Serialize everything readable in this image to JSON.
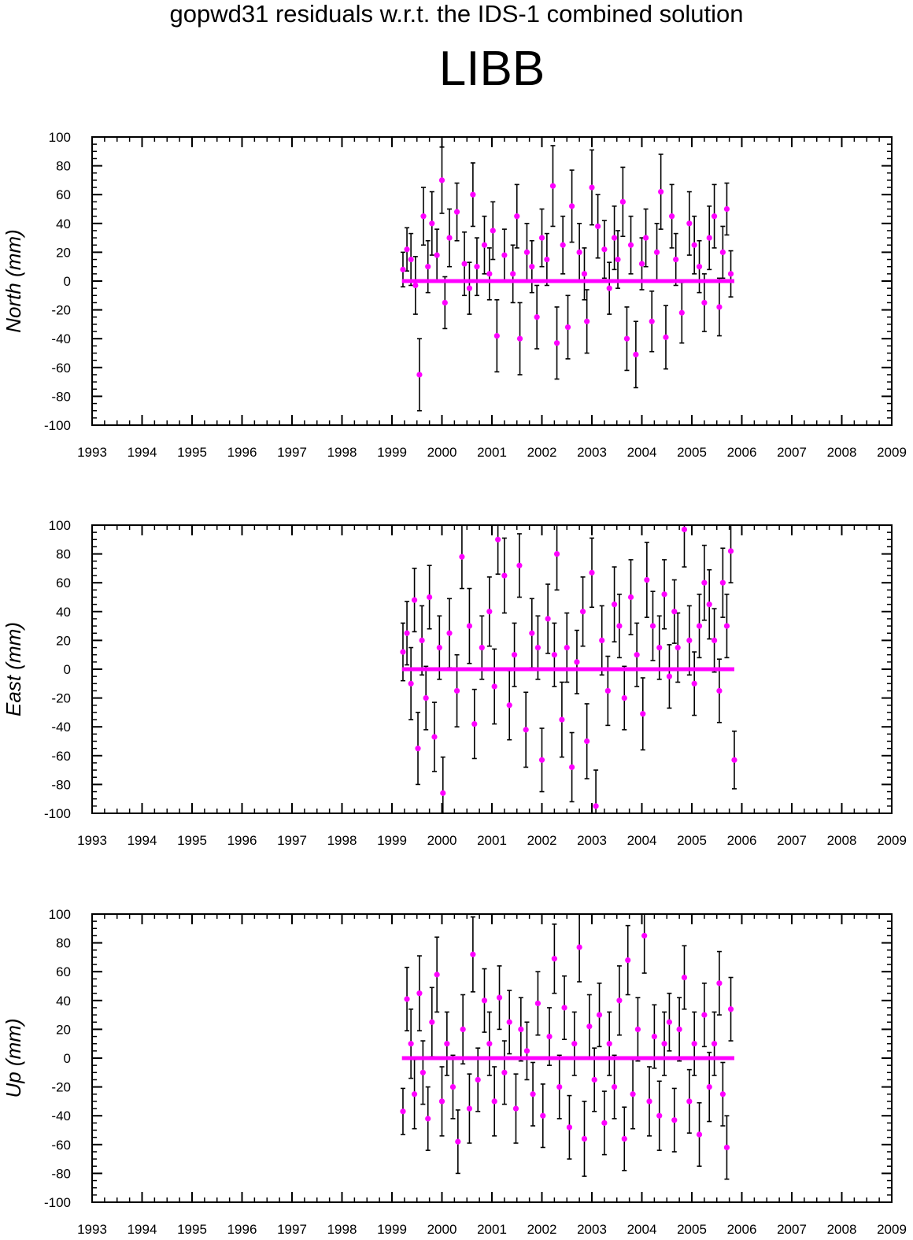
{
  "header": {
    "title": "gopwd31 residuals w.r.t. the IDS-1 combined solution",
    "station": "LIBB"
  },
  "colors": {
    "point": "#ff00ff",
    "error_bar": "#000000",
    "axes": "#000000"
  },
  "chart_data": [
    {
      "type": "scatter",
      "component": "North",
      "ylabel": "North (mm)",
      "xlim": [
        1993,
        2009
      ],
      "ylim": [
        -100,
        100
      ],
      "x_ticks": [
        "1993",
        "1994",
        "1995",
        "1996",
        "1997",
        "1998",
        "1999",
        "2000",
        "2001",
        "2002",
        "2003",
        "2004",
        "2005",
        "2006",
        "2007",
        "2008",
        "2009"
      ],
      "y_ticks": [
        "100",
        "80",
        "60",
        "40",
        "20",
        "0",
        "-20",
        "-40",
        "-60",
        "-80",
        "-100"
      ],
      "zero_line": {
        "x_start": 1999.2,
        "x_end": 2005.85,
        "y": 0
      },
      "series": [
        {
          "x": [
            1999.22,
            1999.3,
            1999.38,
            1999.47,
            1999.55,
            1999.63,
            1999.72,
            1999.8,
            1999.9,
            2000.0,
            2000.06,
            2000.15,
            2000.3,
            2000.45,
            2000.55,
            2000.62,
            2000.7,
            2000.85,
            2000.95,
            2001.02,
            2001.1,
            2001.25,
            2001.42,
            2001.5,
            2001.56,
            2001.7,
            2001.8,
            2001.9,
            2002.0,
            2002.1,
            2002.22,
            2002.3,
            2002.42,
            2002.52,
            2002.6,
            2002.75,
            2002.85,
            2002.9,
            2003.0,
            2003.12,
            2003.25,
            2003.35,
            2003.45,
            2003.52,
            2003.62,
            2003.7,
            2003.78,
            2003.88,
            2004.0,
            2004.08,
            2004.2,
            2004.3,
            2004.38,
            2004.48,
            2004.6,
            2004.68,
            2004.8,
            2004.95,
            2005.05,
            2005.15,
            2005.25,
            2005.35,
            2005.45,
            2005.55,
            2005.62,
            2005.7,
            2005.78
          ],
          "y": [
            8,
            22,
            15,
            -3,
            -65,
            45,
            10,
            40,
            18,
            70,
            -15,
            30,
            48,
            12,
            -5,
            60,
            10,
            25,
            5,
            35,
            -38,
            18,
            5,
            45,
            -40,
            20,
            10,
            -25,
            30,
            15,
            66,
            -43,
            25,
            -32,
            52,
            20,
            5,
            -28,
            65,
            38,
            22,
            -5,
            30,
            15,
            55,
            -40,
            25,
            -51,
            12,
            30,
            -28,
            20,
            62,
            -39,
            45,
            15,
            -22,
            40,
            25,
            10,
            -15,
            30,
            45,
            -18,
            20,
            50,
            5
          ],
          "err": [
            12,
            15,
            18,
            20,
            25,
            20,
            18,
            22,
            18,
            23,
            18,
            20,
            20,
            22,
            18,
            22,
            20,
            20,
            18,
            20,
            25,
            18,
            20,
            22,
            25,
            20,
            18,
            22,
            20,
            18,
            28,
            25,
            20,
            22,
            25,
            20,
            18,
            22,
            26,
            22,
            20,
            18,
            22,
            20,
            24,
            22,
            20,
            23,
            18,
            20,
            21,
            20,
            26,
            22,
            22,
            18,
            21,
            22,
            20,
            18,
            20,
            22,
            22,
            20,
            18,
            18,
            16
          ]
        }
      ]
    },
    {
      "type": "scatter",
      "component": "East",
      "ylabel": "East (mm)",
      "xlim": [
        1993,
        2009
      ],
      "ylim": [
        -100,
        100
      ],
      "x_ticks": [
        "1993",
        "1994",
        "1995",
        "1996",
        "1997",
        "1998",
        "1999",
        "2000",
        "2001",
        "2002",
        "2003",
        "2004",
        "2005",
        "2006",
        "2007",
        "2008",
        "2009"
      ],
      "y_ticks": [
        "100",
        "80",
        "60",
        "40",
        "20",
        "0",
        "-20",
        "-40",
        "-60",
        "-80",
        "-100"
      ],
      "zero_line": {
        "x_start": 1999.2,
        "x_end": 2005.85,
        "y": 0
      },
      "series": [
        {
          "x": [
            1999.22,
            1999.3,
            1999.38,
            1999.45,
            1999.52,
            1999.6,
            1999.68,
            1999.75,
            1999.85,
            1999.95,
            2000.02,
            2000.15,
            2000.3,
            2000.4,
            2000.55,
            2000.65,
            2000.8,
            2000.95,
            2001.05,
            2001.12,
            2001.25,
            2001.35,
            2001.45,
            2001.55,
            2001.68,
            2001.8,
            2001.92,
            2002.0,
            2002.12,
            2002.25,
            2002.3,
            2002.4,
            2002.5,
            2002.6,
            2002.7,
            2002.82,
            2002.9,
            2003.0,
            2003.08,
            2003.2,
            2003.32,
            2003.45,
            2003.55,
            2003.65,
            2003.78,
            2003.9,
            2004.02,
            2004.1,
            2004.22,
            2004.35,
            2004.45,
            2004.55,
            2004.65,
            2004.72,
            2004.85,
            2004.95,
            2005.05,
            2005.15,
            2005.25,
            2005.35,
            2005.45,
            2005.55,
            2005.62,
            2005.7,
            2005.78,
            2005.85
          ],
          "y": [
            12,
            25,
            -10,
            48,
            -55,
            20,
            -20,
            50,
            -47,
            15,
            -86,
            25,
            -15,
            78,
            30,
            -38,
            15,
            40,
            -12,
            90,
            65,
            -25,
            10,
            72,
            -42,
            25,
            15,
            -63,
            35,
            10,
            80,
            -35,
            15,
            -68,
            5,
            40,
            -50,
            67,
            -95,
            20,
            -15,
            45,
            30,
            -20,
            50,
            10,
            -31,
            62,
            30,
            15,
            52,
            -5,
            40,
            15,
            97,
            20,
            -10,
            30,
            60,
            45,
            20,
            -15,
            60,
            30,
            82,
            -63
          ],
          "err": [
            20,
            22,
            25,
            22,
            25,
            24,
            22,
            22,
            24,
            22,
            25,
            24,
            25,
            22,
            26,
            24,
            22,
            24,
            26,
            24,
            26,
            24,
            22,
            22,
            26,
            24,
            22,
            22,
            24,
            22,
            25,
            26,
            24,
            24,
            22,
            24,
            26,
            24,
            25,
            24,
            24,
            26,
            22,
            22,
            26,
            22,
            25,
            26,
            24,
            22,
            24,
            22,
            22,
            24,
            26,
            24,
            22,
            22,
            26,
            24,
            22,
            22,
            24,
            22,
            22,
            20
          ]
        }
      ]
    },
    {
      "type": "scatter",
      "component": "Up",
      "ylabel": "Up (mm)",
      "xlim": [
        1993,
        2009
      ],
      "ylim": [
        -100,
        100
      ],
      "x_ticks": [
        "1993",
        "1994",
        "1995",
        "1996",
        "1997",
        "1998",
        "1999",
        "2000",
        "2001",
        "2002",
        "2003",
        "2004",
        "2005",
        "2006",
        "2007",
        "2008",
        "2009"
      ],
      "y_ticks": [
        "100",
        "80",
        "60",
        "40",
        "20",
        "0",
        "-20",
        "-40",
        "-60",
        "-80",
        "-100"
      ],
      "zero_line": {
        "x_start": 1999.2,
        "x_end": 2005.85,
        "y": 0
      },
      "series": [
        {
          "x": [
            1999.22,
            1999.3,
            1999.38,
            1999.45,
            1999.55,
            1999.62,
            1999.72,
            1999.8,
            1999.9,
            2000.0,
            2000.1,
            2000.22,
            2000.32,
            2000.42,
            2000.55,
            2000.62,
            2000.72,
            2000.85,
            2000.95,
            2001.05,
            2001.15,
            2001.25,
            2001.35,
            2001.48,
            2001.58,
            2001.7,
            2001.82,
            2001.92,
            2002.02,
            2002.15,
            2002.25,
            2002.35,
            2002.45,
            2002.55,
            2002.65,
            2002.75,
            2002.85,
            2002.95,
            2003.05,
            2003.15,
            2003.25,
            2003.35,
            2003.45,
            2003.55,
            2003.65,
            2003.72,
            2003.82,
            2003.92,
            2004.05,
            2004.15,
            2004.25,
            2004.35,
            2004.45,
            2004.55,
            2004.65,
            2004.75,
            2004.85,
            2004.95,
            2005.05,
            2005.15,
            2005.25,
            2005.35,
            2005.45,
            2005.55,
            2005.62,
            2005.7,
            2005.78
          ],
          "y": [
            -37,
            41,
            10,
            -25,
            45,
            -10,
            -42,
            25,
            58,
            -30,
            10,
            -20,
            -58,
            20,
            -35,
            72,
            -15,
            40,
            10,
            -30,
            42,
            -10,
            25,
            -35,
            20,
            5,
            -25,
            38,
            -40,
            15,
            69,
            -20,
            35,
            -48,
            10,
            77,
            -56,
            22,
            -15,
            30,
            -45,
            10,
            -20,
            40,
            -56,
            68,
            -25,
            20,
            85,
            -30,
            15,
            -40,
            10,
            25,
            -43,
            20,
            56,
            -30,
            10,
            -53,
            30,
            -20,
            10,
            52,
            -25,
            -62,
            34
          ],
          "err": [
            16,
            22,
            24,
            24,
            26,
            22,
            22,
            24,
            26,
            24,
            22,
            22,
            22,
            24,
            24,
            26,
            22,
            22,
            22,
            24,
            22,
            22,
            22,
            24,
            22,
            20,
            22,
            22,
            22,
            20,
            24,
            22,
            22,
            22,
            22,
            24,
            26,
            22,
            22,
            22,
            22,
            22,
            22,
            24,
            22,
            24,
            24,
            22,
            26,
            24,
            22,
            24,
            22,
            20,
            22,
            22,
            22,
            22,
            22,
            22,
            22,
            24,
            22,
            22,
            22,
            22,
            22
          ]
        }
      ]
    }
  ]
}
